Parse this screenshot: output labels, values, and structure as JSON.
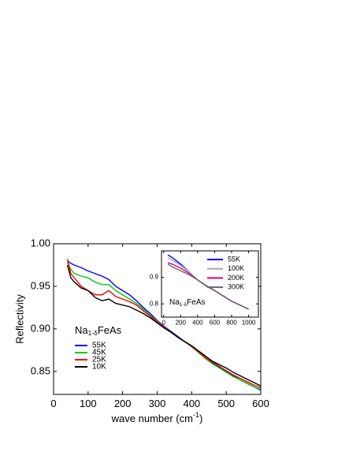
{
  "chart_data": [
    {
      "type": "line",
      "xlabel": "wave number (cm",
      "xlabel_sup": "-1",
      "xlabel_end": ")",
      "ylabel": "Reflectivity",
      "annotation": {
        "base": "Na",
        "sub": "1-δ",
        "rest": "FeAs"
      },
      "xlim": [
        0,
        600
      ],
      "xticks": [
        0,
        100,
        200,
        300,
        400,
        500,
        600
      ],
      "ylim": [
        0.823,
        1.0
      ],
      "yticks": [
        0.85,
        {
          "value": 0.9,
          "label": "0.90"
        },
        0.95,
        {
          "value": 1.0,
          "label": "1.00"
        }
      ],
      "legend": "lower-left",
      "x": [
        40,
        50,
        60,
        80,
        100,
        120,
        140,
        160,
        180,
        200,
        220,
        240,
        260,
        280,
        300,
        320,
        340,
        360,
        380,
        400,
        420,
        440,
        460,
        480,
        500,
        520,
        540,
        560,
        580,
        600
      ],
      "series": [
        {
          "name": "55K",
          "color": "#0000ff",
          "values": [
            0.98,
            0.977,
            0.975,
            0.972,
            0.968,
            0.965,
            0.962,
            0.958,
            0.95,
            0.945,
            0.94,
            0.933,
            0.925,
            0.918,
            0.91,
            0.903,
            0.897,
            0.891,
            0.885,
            0.88,
            0.873,
            0.866,
            0.86,
            0.855,
            0.85,
            0.845,
            0.84,
            0.836,
            0.832,
            0.828
          ]
        },
        {
          "name": "45K",
          "color": "#00cc00",
          "values": [
            0.978,
            0.97,
            0.965,
            0.962,
            0.96,
            0.955,
            0.952,
            0.952,
            0.945,
            0.94,
            0.935,
            0.93,
            0.923,
            0.916,
            0.909,
            0.902,
            0.896,
            0.89,
            0.885,
            0.879,
            0.872,
            0.865,
            0.859,
            0.854,
            0.849,
            0.844,
            0.84,
            0.836,
            0.832,
            0.829
          ]
        },
        {
          "name": "25K",
          "color": "#ff0000",
          "values": [
            0.982,
            0.965,
            0.96,
            0.95,
            0.945,
            0.94,
            0.94,
            0.945,
            0.938,
            0.935,
            0.932,
            0.928,
            0.921,
            0.915,
            0.908,
            0.902,
            0.896,
            0.89,
            0.885,
            0.879,
            0.873,
            0.866,
            0.861,
            0.856,
            0.851,
            0.846,
            0.842,
            0.838,
            0.834,
            0.831
          ]
        },
        {
          "name": "10K",
          "color": "#000000",
          "values": [
            0.975,
            0.96,
            0.955,
            0.948,
            0.945,
            0.937,
            0.933,
            0.935,
            0.93,
            0.928,
            0.926,
            0.922,
            0.918,
            0.913,
            0.907,
            0.901,
            0.896,
            0.89,
            0.885,
            0.88,
            0.874,
            0.868,
            0.862,
            0.858,
            0.854,
            0.849,
            0.845,
            0.841,
            0.837,
            0.833
          ]
        }
      ]
    },
    {
      "type": "line",
      "annotation": {
        "base": "Na",
        "sub": "1-δ",
        "rest": "FeAs"
      },
      "xlim": [
        -25,
        1115
      ],
      "xticks": [
        0,
        200,
        400,
        600,
        800,
        1000
      ],
      "ylim": [
        0.75,
        1.0
      ],
      "yticks": [
        0.8,
        0.9
      ],
      "legend": "upper-right",
      "x": [
        50,
        100,
        200,
        300,
        400,
        500,
        600,
        700,
        800,
        900,
        1000
      ],
      "series": [
        {
          "name": "55K",
          "color": "#0000ff",
          "values": [
            0.985,
            0.975,
            0.95,
            0.92,
            0.89,
            0.87,
            0.85,
            0.83,
            0.81,
            0.795,
            0.78
          ]
        },
        {
          "name": "100K",
          "color": "#aaaaaa",
          "values": [
            0.975,
            0.965,
            0.945,
            0.92,
            0.89,
            0.87,
            0.85,
            0.83,
            0.81,
            0.795,
            0.78
          ]
        },
        {
          "name": "200K",
          "color": "#e0006e",
          "values": [
            0.955,
            0.95,
            0.935,
            0.915,
            0.89,
            0.868,
            0.85,
            0.83,
            0.81,
            0.795,
            0.78
          ]
        },
        {
          "name": "300K",
          "color": "#666666",
          "values": [
            0.95,
            0.94,
            0.925,
            0.91,
            0.89,
            0.868,
            0.85,
            0.83,
            0.81,
            0.795,
            0.78
          ]
        }
      ]
    }
  ]
}
